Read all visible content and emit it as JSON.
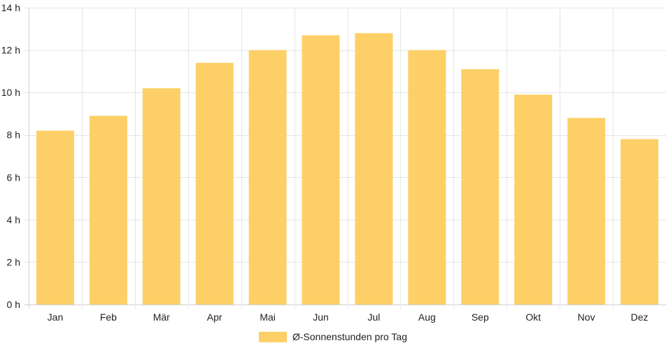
{
  "chart_data": {
    "type": "bar",
    "categories": [
      "Jan",
      "Feb",
      "Mär",
      "Apr",
      "Mai",
      "Jun",
      "Jul",
      "Aug",
      "Sep",
      "Okt",
      "Nov",
      "Dez"
    ],
    "series": [
      {
        "name": "Ø-Sonnenstunden pro Tag",
        "values": [
          8.2,
          8.9,
          10.2,
          11.4,
          12.0,
          12.7,
          12.8,
          12.0,
          11.1,
          9.9,
          8.8,
          7.8
        ]
      }
    ],
    "ylim": [
      0,
      14
    ],
    "y_ticks": [
      0,
      2,
      4,
      6,
      8,
      10,
      12,
      14
    ],
    "y_tick_labels": [
      "0 h",
      "2 h",
      "4 h",
      "6 h",
      "8 h",
      "10 h",
      "12 h",
      "14 h"
    ],
    "grid": true,
    "legend_position": "bottom"
  },
  "colors": {
    "bar": "#fdd067",
    "grid": "#e6e6e6",
    "axis": "#d0d0d0",
    "text": "#222222"
  }
}
